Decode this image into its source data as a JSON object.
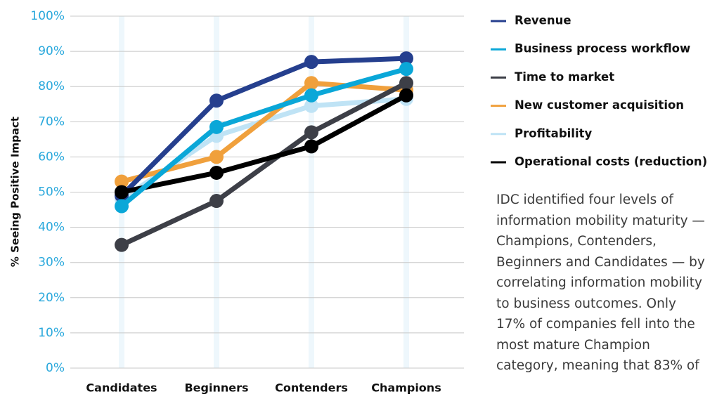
{
  "chart_data": {
    "type": "line",
    "y_axis_label": "% Seeing Positive Impact",
    "categories": [
      "Candidates",
      "Beginners",
      "Contenders",
      "Champions"
    ],
    "series": [
      {
        "name": "Revenue",
        "color": "#253f8e",
        "values": [
          49,
          76,
          87,
          88
        ]
      },
      {
        "name": "Business process workflow",
        "color": "#0aa7d8",
        "values": [
          46,
          68.5,
          77.5,
          85
        ]
      },
      {
        "name": "Time to market",
        "color": "#3d3f47",
        "values": [
          35,
          47.5,
          67,
          81
        ]
      },
      {
        "name": "New customer acquisition",
        "color": "#f0a03c",
        "values": [
          53,
          60,
          81,
          79
        ]
      },
      {
        "name": "Profitability",
        "color": "#bfe3f5",
        "values": [
          48,
          66,
          74.5,
          76.5
        ]
      },
      {
        "name": "Operational costs (reduction)",
        "color": "#000000",
        "values": [
          50,
          55.5,
          63,
          77.5
        ]
      }
    ],
    "ylim": [
      0,
      100
    ],
    "yticks": [
      {
        "value": 0,
        "label": "0%"
      },
      {
        "value": 10,
        "label": "10%"
      },
      {
        "value": 20,
        "label": "20%"
      },
      {
        "value": 30,
        "label": "30%"
      },
      {
        "value": 40,
        "label": "40%"
      },
      {
        "value": 50,
        "label": "50%"
      },
      {
        "value": 60,
        "label": "60%"
      },
      {
        "value": 70,
        "label": "70%"
      },
      {
        "value": 80,
        "label": "80%"
      },
      {
        "value": 90,
        "label": "90%"
      },
      {
        "value": 100,
        "label": "100%"
      }
    ],
    "grid": true,
    "legend": "right",
    "annotation": "IDC identified four levels of information mobility maturity — Champions, Contenders, Beginners and Candidates — by correlating information mobility to business outcomes. Only 17% of companies fell into the most mature Champion category, meaning that 83% of"
  }
}
